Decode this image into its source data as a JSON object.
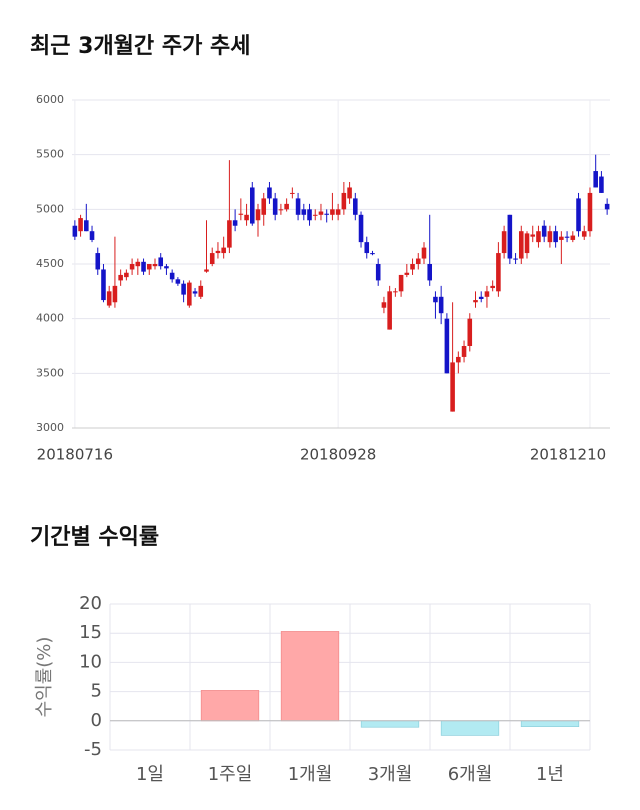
{
  "chart_data": [
    {
      "type": "candlestick",
      "title": "최근 3개월간 주가 추세",
      "up_color": "#d81e1e",
      "down_color": "#1414c8",
      "ylim": [
        3000,
        6000
      ],
      "yticks": [
        3000,
        3500,
        4000,
        4500,
        5000,
        5500,
        6000
      ],
      "grid": true,
      "categories": [
        "20180716",
        null,
        null,
        null,
        null,
        null,
        null,
        null,
        null,
        null,
        null,
        null,
        null,
        null,
        null,
        null,
        null,
        null,
        null,
        null,
        null,
        null,
        null,
        null,
        null,
        null,
        null,
        null,
        null,
        null,
        null,
        null,
        null,
        null,
        null,
        null,
        null,
        null,
        null,
        null,
        null,
        null,
        null,
        null,
        null,
        null,
        "20180928",
        null,
        null,
        null,
        null,
        null,
        null,
        null,
        null,
        null,
        null,
        null,
        null,
        null,
        null,
        null,
        null,
        null,
        null,
        null,
        null,
        null,
        null,
        null,
        null,
        null,
        null,
        null,
        null,
        null,
        null,
        null,
        null,
        null,
        null,
        null,
        null,
        null,
        null,
        null,
        null,
        null,
        null,
        null,
        "20181210",
        null,
        null,
        null
      ],
      "open": [
        4850,
        4800,
        4900,
        4800,
        4600,
        4450,
        4120,
        4150,
        4350,
        4380,
        4450,
        4480,
        4520,
        4450,
        4480,
        4560,
        4480,
        4420,
        4360,
        4320,
        4120,
        4250,
        4200,
        4430,
        4500,
        4600,
        4600,
        4650,
        4900,
        4950,
        4900,
        5200,
        4900,
        4950,
        5200,
        5100,
        5000,
        5000,
        5150,
        5100,
        5000,
        5000,
        4950,
        4950,
        4960,
        4950,
        4950,
        5000,
        5100,
        5100,
        4950,
        4700,
        4600,
        4500,
        4100,
        3900,
        4250,
        4250,
        4400,
        4450,
        4500,
        4550,
        4500,
        4200,
        4200,
        4000,
        3150,
        3600,
        3650,
        3750,
        4150,
        4200,
        4200,
        4280,
        4250,
        4600,
        4950,
        4550,
        4550,
        4600,
        4750,
        4700,
        4850,
        4700,
        4800,
        4720,
        4750,
        4720,
        5100,
        4750,
        4800,
        5350,
        5300,
        5050
      ],
      "high": [
        4900,
        4950,
        5050,
        4850,
        4650,
        4500,
        4300,
        4750,
        4450,
        4450,
        4550,
        4550,
        4550,
        4500,
        4550,
        4600,
        4500,
        4450,
        4380,
        4350,
        4350,
        4280,
        4350,
        4900,
        4650,
        4700,
        4750,
        5450,
        5000,
        5100,
        5050,
        5250,
        5050,
        5150,
        5250,
        5150,
        5050,
        5100,
        5200,
        5150,
        5050,
        5050,
        5000,
        5050,
        5000,
        5150,
        5050,
        5250,
        5250,
        5150,
        4980,
        4750,
        4620,
        4550,
        4200,
        4300,
        4280,
        4400,
        4500,
        4550,
        4600,
        4700,
        4950,
        4250,
        4300,
        4050,
        4150,
        3700,
        3800,
        4050,
        4250,
        4250,
        4300,
        4350,
        4700,
        4850,
        4950,
        4600,
        4850,
        4800,
        4850,
        4850,
        4900,
        4850,
        4850,
        4800,
        4800,
        4800,
        5150,
        4850,
        5200,
        5500,
        5350,
        5100
      ],
      "low": [
        4720,
        4750,
        4800,
        4700,
        4400,
        4150,
        4100,
        4100,
        4300,
        4350,
        4400,
        4400,
        4400,
        4400,
        4450,
        4450,
        4400,
        4330,
        4300,
        4150,
        4100,
        4200,
        4180,
        4420,
        4480,
        4550,
        4550,
        4600,
        4800,
        4900,
        4850,
        4850,
        4750,
        4850,
        5050,
        4900,
        4950,
        4980,
        5100,
        4900,
        4900,
        4850,
        4900,
        4900,
        4880,
        4900,
        4900,
        4950,
        5050,
        4900,
        4650,
        4550,
        4580,
        4300,
        4050,
        3900,
        4200,
        4200,
        4380,
        4400,
        4450,
        4500,
        4300,
        4000,
        3950,
        3500,
        3150,
        3500,
        3600,
        3700,
        4100,
        4150,
        4100,
        4250,
        4200,
        4550,
        4500,
        4500,
        4500,
        4550,
        4700,
        4650,
        4700,
        4650,
        4650,
        4500,
        4700,
        4700,
        4750,
        4720,
        4750,
        5200,
        5150,
        4950
      ],
      "close": [
        4750,
        4920,
        4800,
        4720,
        4450,
        4170,
        4250,
        4300,
        4400,
        4420,
        4500,
        4520,
        4430,
        4500,
        4500,
        4480,
        4460,
        4360,
        4320,
        4220,
        4330,
        4230,
        4300,
        4450,
        4600,
        4620,
        4650,
        4900,
        4850,
        4960,
        4950,
        4870,
        5000,
        5100,
        5100,
        4950,
        5000,
        5050,
        5150,
        4950,
        4950,
        4900,
        4950,
        4980,
        4950,
        5000,
        5000,
        5150,
        5200,
        4950,
        4700,
        4600,
        4590,
        4350,
        4150,
        4250,
        4250,
        4400,
        4420,
        4500,
        4550,
        4650,
        4350,
        4150,
        4050,
        3500,
        3600,
        3650,
        3750,
        4000,
        4170,
        4180,
        4250,
        4300,
        4600,
        4800,
        4550,
        4540,
        4800,
        4780,
        4770,
        4800,
        4750,
        4800,
        4700,
        4750,
        4740,
        4760,
        4800,
        4800,
        5150,
        5200,
        5150,
        5000
      ]
    },
    {
      "type": "bar",
      "title": "기간별 수익률",
      "ylabel": "수익률(%)",
      "categories": [
        "1일",
        "1주일",
        "1개월",
        "3개월",
        "6개월",
        "1년"
      ],
      "values": [
        0,
        5.2,
        15.3,
        -1.1,
        -2.5,
        -1.0
      ],
      "pos_color": "#ffa8a8",
      "neg_color": "#b2eaf2",
      "ylim": [
        -5,
        20
      ],
      "yticks": [
        -5,
        0,
        5,
        10,
        15,
        20
      ],
      "grid": true
    }
  ]
}
